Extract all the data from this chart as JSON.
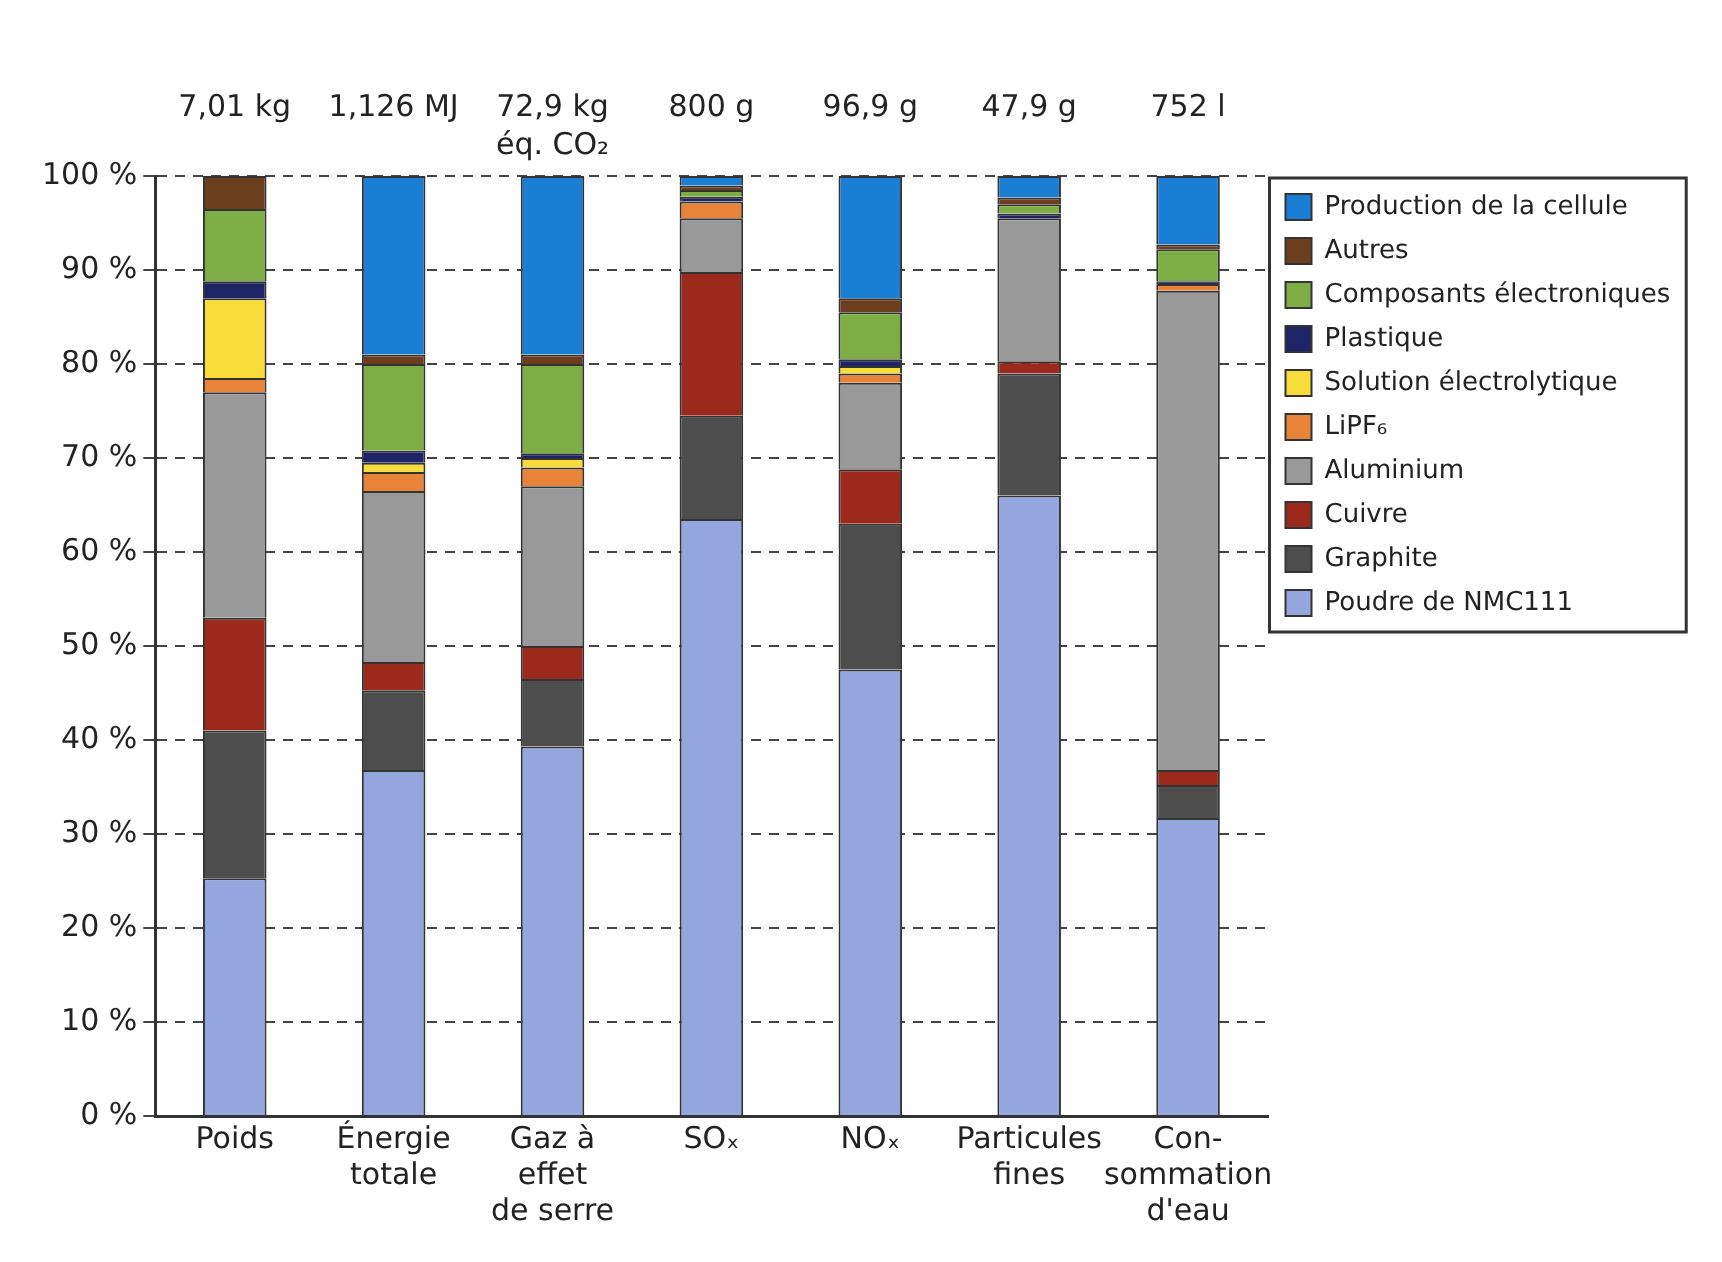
{
  "chart_data": {
    "type": "bar",
    "stacked": true,
    "categories": [
      "Poids",
      "Énergie\ntotale",
      "Gaz à\neffet\nde serre",
      "SOₓ",
      "NOₓ",
      "Particules\nfines",
      "Con-\nsommation\nd'eau"
    ],
    "series": [
      {
        "name": "Poudre de NMC111",
        "color": "#94a6dd",
        "values": [
          25.3,
          36.8,
          39.3,
          63.5,
          47.5,
          66,
          31.7
        ]
      },
      {
        "name": "Graphite",
        "color": "#4d4d4d",
        "values": [
          15.7,
          8.5,
          7.2,
          11,
          15.5,
          13,
          3.5
        ]
      },
      {
        "name": "Cuivre",
        "color": "#9c2a1c",
        "values": [
          12,
          3,
          3.5,
          15.3,
          5.8,
          1.3,
          1.6
        ]
      },
      {
        "name": "Aluminium",
        "color": "#999999",
        "values": [
          24,
          18.2,
          17,
          5.7,
          9.2,
          15.2,
          51
        ]
      },
      {
        "name": "LiPF₆",
        "color": "#e8833a",
        "values": [
          1.5,
          2,
          2,
          1.8,
          1,
          0,
          0.7
        ]
      },
      {
        "name": "Solution électrolytique",
        "color": "#f7dc3a",
        "values": [
          8.5,
          1,
          1,
          0,
          0.8,
          0,
          0
        ]
      },
      {
        "name": "Plastique",
        "color": "#1f2466",
        "values": [
          1.8,
          1.3,
          0.5,
          0.5,
          0.7,
          0.5,
          0.3
        ]
      },
      {
        "name": "Composants électroniques",
        "color": "#7fad45",
        "values": [
          7.7,
          9.2,
          9.5,
          0.7,
          5,
          1,
          3.4
        ]
      },
      {
        "name": "Autres",
        "color": "#6b3f1e",
        "values": [
          3.5,
          1,
          1,
          0.5,
          1.5,
          0.7,
          0.5
        ]
      },
      {
        "name": "Production de la cellule",
        "color": "#1a7fd4",
        "values": [
          0,
          19,
          19,
          1,
          13,
          2.3,
          7.3
        ]
      }
    ],
    "ylim": [
      0,
      100
    ],
    "yticks": [
      {
        "value": 0,
        "label": "0 %"
      },
      {
        "value": 10,
        "label": "10 %"
      },
      {
        "value": 20,
        "label": "20 %"
      },
      {
        "value": 30,
        "label": "30 %"
      },
      {
        "value": 40,
        "label": "40 %"
      },
      {
        "value": 50,
        "label": "50 %"
      },
      {
        "value": 60,
        "label": "60 %"
      },
      {
        "value": 70,
        "label": "70 %"
      },
      {
        "value": 80,
        "label": "80 %"
      },
      {
        "value": 90,
        "label": "90 %"
      },
      {
        "value": 100,
        "label": "100 %"
      }
    ],
    "grid": "y",
    "legend": "right",
    "annotations": [
      "7,01 kg",
      "1,126 MJ",
      "72,9 kg\néq. CO₂",
      "800 g",
      "96,9 g",
      "47,9 g",
      "752 l"
    ]
  }
}
